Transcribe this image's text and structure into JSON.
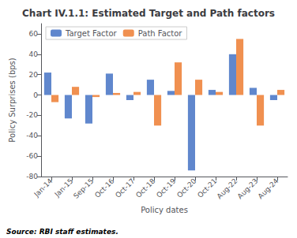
{
  "chart_data": {
    "type": "bar",
    "title": "Chart IV.1.1: Estimated Target and Path factors",
    "x_label": "Policy dates",
    "y_label": "Policy Surprises (bps)",
    "annotations": [
      "Source: RBI staff estimates."
    ],
    "categories": [
      "Jan-14",
      "Jan-15",
      "Sep-15",
      "Oct-16",
      "Oct-17",
      "Oct-18",
      "Oct-19",
      "Oct-20",
      "Oct-21",
      "Aug-22",
      "Aug-23",
      "Aug-24"
    ],
    "series": [
      {
        "name": "Target Factor",
        "color": "#4472C4",
        "values": [
          22,
          -23,
          -28,
          21,
          -5,
          15,
          4,
          -74,
          5,
          40,
          7,
          -5
        ]
      },
      {
        "name": "Path Factor",
        "color": "#ED7D31",
        "values": [
          -7,
          8,
          -2,
          2,
          3,
          -30,
          32,
          15,
          3,
          55,
          -30,
          5
        ]
      }
    ],
    "ylim": [
      -80,
      70
    ],
    "yticks": [
      -80,
      -60,
      -40,
      -20,
      0,
      20,
      40,
      60
    ],
    "grid": false,
    "legend": "upper left"
  }
}
